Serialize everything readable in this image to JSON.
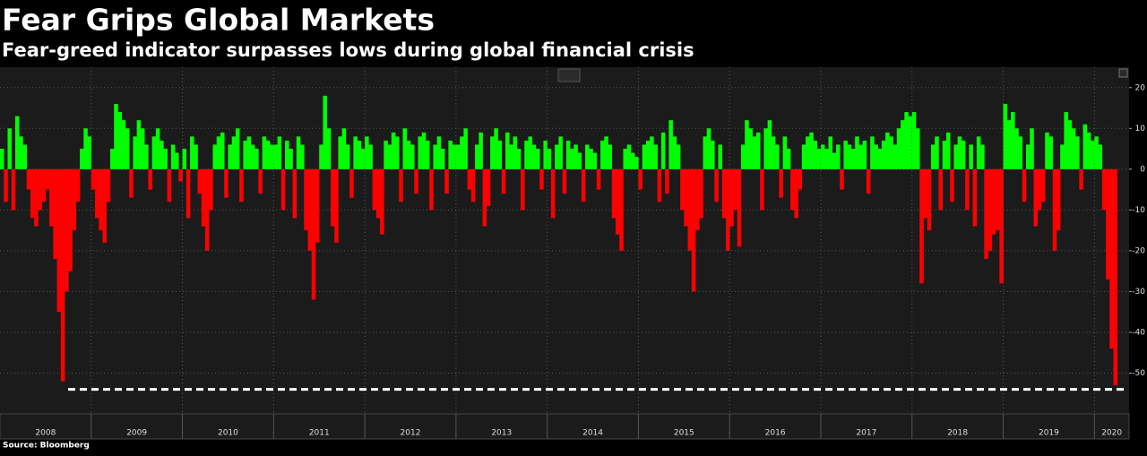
{
  "chart_data": {
    "type": "bar",
    "title": "Fear Grips Global Markets",
    "subtitle": "Fear-greed indicator surpasses lows during global financial crisis",
    "source": "Source: Bloomberg",
    "categories": [
      "2008",
      "2009",
      "2010",
      "2011",
      "2012",
      "2013",
      "2014",
      "2015",
      "2016",
      "2017",
      "2018",
      "2019",
      "2020"
    ],
    "values": [
      [
        5,
        -8,
        10,
        -10,
        13,
        8,
        6,
        -5,
        -12,
        -14,
        -10,
        -8,
        -5,
        -14,
        -22,
        -35,
        -52,
        -30,
        -25,
        -15,
        -8,
        5,
        10,
        8
      ],
      [
        -5,
        -12,
        -15,
        -18,
        -8,
        5,
        16,
        14,
        12,
        10,
        -7,
        8,
        12,
        10,
        6,
        -5,
        8,
        10,
        7,
        5,
        -8,
        6,
        4,
        -3
      ],
      [
        5,
        -12,
        8,
        6,
        -6,
        -14,
        -20,
        -10,
        6,
        8,
        9,
        -7,
        6,
        8,
        10,
        -8,
        7,
        8,
        6,
        5,
        -6,
        8,
        7,
        6
      ],
      [
        6,
        8,
        -10,
        7,
        5,
        -12,
        8,
        6,
        -15,
        -20,
        -32,
        -18,
        6,
        18,
        10,
        -14,
        -18,
        8,
        10,
        6,
        -7,
        8,
        7,
        5
      ],
      [
        8,
        6,
        -10,
        -12,
        -16,
        7,
        6,
        9,
        8,
        -8,
        10,
        7,
        6,
        -6,
        8,
        9,
        7,
        -10,
        6,
        8,
        5,
        -6,
        7,
        6
      ],
      [
        6,
        8,
        10,
        -5,
        -8,
        6,
        9,
        -14,
        -9,
        8,
        10,
        7,
        -6,
        9,
        6,
        8,
        5,
        -10,
        7,
        8,
        6,
        5,
        -5,
        7
      ],
      [
        5,
        -12,
        6,
        8,
        -6,
        7,
        5,
        6,
        4,
        -8,
        6,
        5,
        4,
        -5,
        7,
        8,
        6,
        -12,
        -16,
        -20,
        5,
        6,
        4,
        3
      ],
      [
        -5,
        6,
        7,
        8,
        6,
        -8,
        9,
        -6,
        12,
        8,
        6,
        -10,
        -14,
        -20,
        -30,
        -15,
        -12,
        8,
        10,
        7,
        -8,
        6,
        -12,
        -20
      ],
      [
        -14,
        -10,
        -19,
        6,
        12,
        10,
        8,
        9,
        -10,
        10,
        12,
        8,
        6,
        -7,
        8,
        5,
        -10,
        -12,
        -5,
        6,
        8,
        9,
        7,
        5
      ],
      [
        6,
        5,
        8,
        4,
        6,
        -5,
        7,
        6,
        5,
        8,
        6,
        7,
        -6,
        8,
        6,
        5,
        7,
        9,
        8,
        6,
        10,
        12,
        14,
        13
      ],
      [
        14,
        10,
        -28,
        -12,
        -15,
        6,
        8,
        -10,
        7,
        9,
        -8,
        6,
        8,
        7,
        -10,
        6,
        -14,
        8,
        6,
        -22,
        -20,
        -16,
        -15,
        -28
      ],
      [
        16,
        12,
        14,
        10,
        8,
        -8,
        6,
        10,
        -14,
        -10,
        -8,
        9,
        8,
        -20,
        -15,
        6,
        14,
        12,
        10,
        8,
        -5,
        11,
        9,
        7
      ],
      [
        8,
        6,
        -10,
        -27,
        -44,
        -53
      ]
    ],
    "positive_color": "#00ff00",
    "negative_color": "#ff0000",
    "threshold": -54,
    "ylim": [
      -60,
      25
    ],
    "yticks": [
      -50,
      -40,
      -30,
      -20,
      -10,
      0,
      10,
      20
    ],
    "grid": true
  }
}
